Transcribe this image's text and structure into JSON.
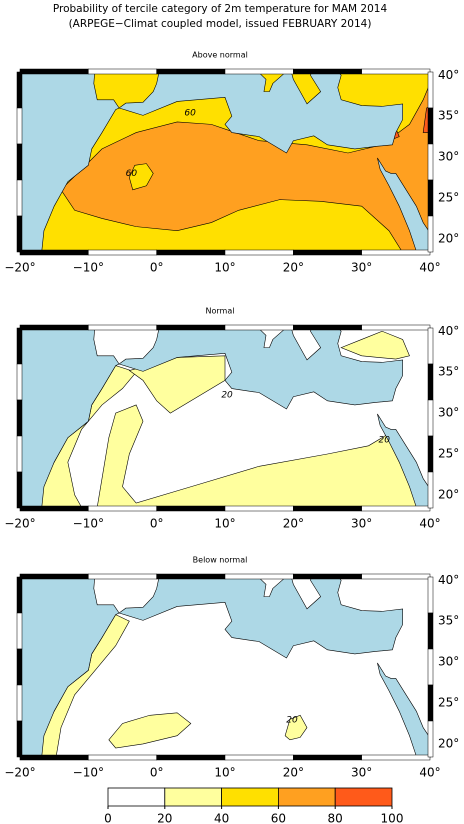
{
  "title": [
    "Probability of tercile category of 2m temperature for MAM 2014",
    "(ARPEGE−Climat coupled model, issued FEBRUARY 2014)"
  ],
  "lon_labels": [
    "−20°",
    "−10°",
    "0°",
    "10°",
    "20°",
    "30°",
    "40°"
  ],
  "lat_labels": [
    "20°",
    "25°",
    "30°",
    "35°",
    "40°"
  ],
  "panels": [
    {
      "title": "Above normal",
      "contour_labels": [
        "60",
        "60"
      ]
    },
    {
      "title": "Normal",
      "contour_labels": [
        "20",
        "20"
      ]
    },
    {
      "title": "Below normal",
      "contour_labels": [
        "20"
      ]
    }
  ],
  "colorbar": {
    "ticks": [
      0,
      20,
      40,
      60,
      80,
      100
    ],
    "colors": [
      "#ffffff",
      "#ffff9e",
      "#ffe000",
      "#ffa020",
      "#ff5a1a"
    ]
  }
}
